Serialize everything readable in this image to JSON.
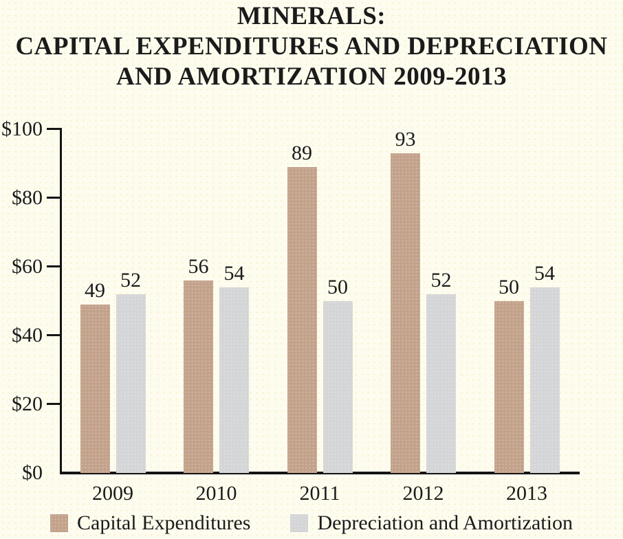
{
  "title": {
    "line1": "MINERALS:",
    "line2": "CAPITAL EXPENDITURES AND DEPRECIATION",
    "line3": "AND AMORTIZATION 2009-2013"
  },
  "chart_data": {
    "type": "bar",
    "categories": [
      "2009",
      "2010",
      "2011",
      "2012",
      "2013"
    ],
    "series": [
      {
        "name": "Capital Expenditures",
        "color": "#c3a28b",
        "values": [
          49,
          56,
          89,
          93,
          50
        ]
      },
      {
        "name": "Depreciation and Amortization",
        "color": "#d4d5d6",
        "values": [
          52,
          54,
          50,
          52,
          54
        ]
      }
    ],
    "title": "MINERALS: CAPITAL EXPENDITURES AND DEPRECIATION AND AMORTIZATION 2009-2013",
    "xlabel": "",
    "ylabel": "",
    "ylim": [
      0,
      100
    ],
    "ytick_values": [
      0,
      20,
      40,
      60,
      80,
      100
    ],
    "ytick_labels": [
      "$0",
      "$20",
      "$40",
      "$60",
      "$80",
      "$100"
    ],
    "grid": false,
    "value_labels": true,
    "legend_position": "bottom"
  },
  "colors": {
    "background": "#fdfcef",
    "axis": "#141414",
    "text": "#1b1b1b",
    "capital_expenditures": "#c3a28b",
    "depreciation_amortization": "#d4d5d6"
  }
}
